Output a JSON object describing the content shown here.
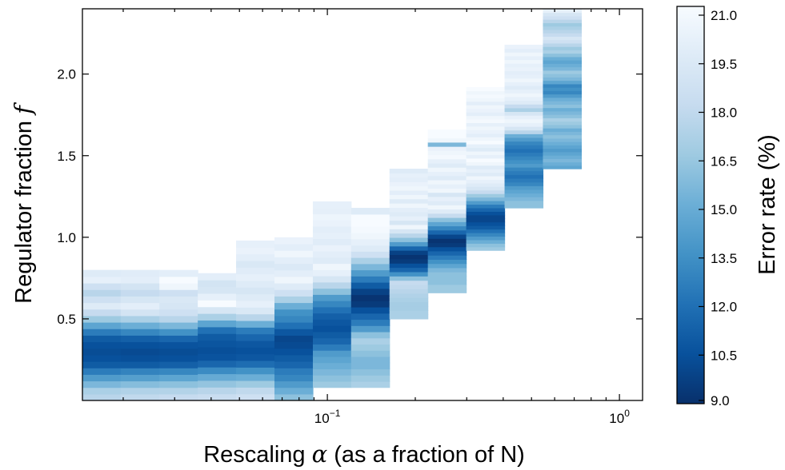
{
  "chart_data": {
    "type": "heatmap",
    "xlabel_main": "Rescaling ",
    "xlabel_symbol": "α",
    "xlabel_rest": " (as a fraction of N)",
    "ylabel_main": "Regulator fraction ",
    "ylabel_symbol": "f",
    "xscale": "log",
    "xlim": [
      0.0145,
      1.2
    ],
    "ylim": [
      0.0,
      2.4
    ],
    "xticks": [
      {
        "value": 0.1,
        "base": "10",
        "exp": "−1"
      },
      {
        "value": 1.0,
        "base": "10",
        "exp": "0"
      }
    ],
    "yticks": [
      {
        "value": 0.5,
        "label": "0.5"
      },
      {
        "value": 1.0,
        "label": "1.0"
      },
      {
        "value": 1.5,
        "label": "1.5"
      },
      {
        "value": 2.0,
        "label": "2.0"
      }
    ],
    "colorbar": {
      "label": "Error rate (%)",
      "range": [
        9.0,
        21.0
      ],
      "ticks": [
        "9.0",
        "10.5",
        "12.0",
        "13.5",
        "15.0",
        "16.5",
        "18.0",
        "19.5",
        "21.0"
      ],
      "colormap": "Blues_r",
      "dark_color": "#08306b",
      "light_color": "#f7fbff"
    },
    "grid": false,
    "x_bin_edges": [
      0.0145,
      0.0196,
      0.0266,
      0.036,
      0.0487,
      0.0659,
      0.0892,
      0.1206,
      0.1632,
      0.2208,
      0.2988,
      0.4043,
      0.547,
      0.7402,
      1.0016
    ],
    "x_bin_edge_last": 1.2,
    "columns": [
      {
        "ymax": 0.8,
        "values": [
          17.5,
          17.0,
          15.5,
          14.0,
          12.5,
          11.0,
          10.5,
          10.3,
          10.5,
          11.0,
          12.5,
          14.5,
          16.5,
          18.0,
          19.5,
          18.5,
          17.5,
          18.5,
          20.0,
          19.5
        ]
      },
      {
        "ymax": 0.8,
        "values": [
          17.8,
          17.2,
          15.8,
          14.2,
          12.8,
          11.0,
          10.4,
          10.2,
          10.5,
          11.2,
          13.0,
          15.0,
          17.0,
          18.8,
          19.8,
          19.0,
          18.0,
          18.8,
          19.8,
          19.6
        ]
      },
      {
        "ymax": 0.8,
        "values": [
          18.0,
          17.3,
          16.0,
          14.5,
          13.0,
          11.2,
          10.5,
          10.3,
          10.6,
          11.5,
          13.5,
          15.5,
          17.5,
          18.5,
          19.0,
          19.2,
          18.5,
          20.5,
          21.0,
          19.8
        ]
      },
      {
        "ymax": 0.78,
        "values": [
          18.2,
          17.5,
          16.2,
          14.8,
          13.2,
          11.5,
          10.6,
          10.4,
          10.7,
          11.0,
          12.0,
          14.5,
          17.0,
          19.0,
          21.0,
          20.0,
          19.0,
          18.8,
          19.8
        ]
      },
      {
        "ymax": 0.98,
        "values": [
          18.5,
          17.8,
          16.5,
          15.0,
          13.5,
          11.8,
          10.8,
          10.5,
          10.8,
          11.5,
          12.5,
          15.0,
          17.5,
          19.2,
          20.0,
          19.5,
          19.0,
          19.5,
          20.0,
          19.6,
          19.2,
          19.8,
          20.2,
          20.0
        ]
      },
      {
        "ymax": 1.0,
        "values": [
          16.0,
          15.0,
          14.0,
          13.0,
          12.5,
          11.5,
          11.0,
          10.5,
          10.2,
          10.0,
          10.8,
          12.0,
          13.0,
          13.5,
          15.0,
          17.0,
          18.5,
          19.5,
          20.5,
          19.8,
          19.3,
          19.8,
          20.5,
          19.8,
          20.2
        ]
      },
      {
        "ymax": 1.22,
        "values": [
          16.5,
          16.0,
          15.5,
          15.0,
          14.5,
          14.0,
          12.5,
          11.5,
          11.0,
          10.5,
          10.8,
          11.2,
          12.0,
          13.0,
          14.0,
          16.0,
          17.5,
          19.0,
          20.0,
          20.5,
          19.5,
          19.8,
          20.2,
          19.6,
          20.0,
          19.8,
          20.2,
          20.4,
          19.9,
          20.0
        ]
      },
      {
        "ymax": 1.18,
        "values": [
          17.0,
          16.5,
          16.0,
          15.5,
          15.5,
          16.0,
          16.5,
          17.0,
          16.0,
          14.0,
          12.5,
          11.5,
          10.5,
          9.5,
          9.2,
          9.8,
          11.0,
          12.5,
          14.0,
          15.5,
          17.0,
          18.5,
          19.5,
          20.0,
          20.5,
          20.8,
          21.0,
          22.0,
          19.5
        ]
      },
      {
        "ymax": 1.42,
        "values": [
          17.0,
          17.0,
          16.8,
          16.8,
          17.0,
          17.2,
          17.5,
          17.8,
          18.0,
          16.0,
          13.5,
          11.5,
          10.5,
          9.5,
          9.2,
          9.8,
          11.5,
          14.0,
          16.0,
          17.5,
          19.0,
          20.5,
          19.0,
          20.0,
          19.5,
          19.8,
          20.5,
          19.5,
          20.5,
          19.8,
          20.5,
          20.2,
          19.8,
          20.0,
          19.5
        ]
      },
      {
        "ymax": 1.66,
        "values": [
          16.5,
          16.5,
          16.0,
          16.0,
          16.0,
          15.5,
          14.5,
          13.5,
          12.5,
          11.5,
          10.5,
          9.5,
          9.2,
          10.0,
          11.5,
          13.0,
          14.5,
          16.0,
          18.0,
          19.5,
          20.5,
          19.5,
          20.0,
          19.0,
          20.5,
          20.0,
          20.5,
          19.5,
          20.0,
          20.5,
          19.5,
          20.0,
          20.8,
          20.5,
          20.2,
          15.5,
          20.5,
          21.0,
          22.0
        ]
      },
      {
        "ymax": 1.92,
        "values": [
          16.5,
          16.0,
          15.0,
          14.0,
          13.0,
          12.0,
          11.0,
          10.5,
          10.0,
          10.0,
          10.5,
          11.5,
          12.5,
          14.0,
          15.5,
          16.5,
          18.0,
          19.0,
          19.5,
          20.0,
          20.5,
          19.5,
          20.0,
          19.5,
          20.5,
          21.0,
          20.0,
          20.5,
          19.5,
          20.0,
          21.0,
          20.5,
          19.8,
          20.2,
          20.5,
          20.0,
          20.8,
          20.5,
          19.8,
          20.2,
          20.5,
          19.8,
          20.5,
          20.8,
          20.5,
          21.0
        ]
      },
      {
        "ymax": 2.18,
        "values": [
          16.0,
          16.0,
          15.5,
          15.0,
          14.5,
          14.0,
          13.0,
          12.5,
          12.0,
          12.5,
          13.0,
          14.0,
          13.5,
          13.0,
          12.5,
          12.0,
          12.5,
          13.0,
          14.0,
          15.0,
          17.5,
          19.0,
          20.0,
          20.5,
          20.0,
          19.0,
          17.0,
          18.0,
          19.5,
          20.0,
          20.5,
          20.0,
          19.5,
          20.0,
          20.5,
          20.0,
          19.8,
          20.2,
          20.0,
          20.5,
          20.0,
          20.5,
          19.8,
          20.2
        ]
      },
      {
        "ymax": 2.44,
        "values": [
          14.5,
          15.0,
          15.5,
          15.0,
          14.5,
          14.0,
          14.5,
          15.0,
          15.5,
          16.0,
          15.5,
          15.0,
          16.0,
          16.5,
          17.0,
          16.0,
          15.5,
          15.0,
          16.0,
          15.5,
          15.0,
          14.0,
          13.0,
          13.5,
          13.0,
          14.5,
          15.5,
          16.0,
          16.5,
          15.5,
          15.0,
          14.5,
          15.0,
          16.0,
          17.0,
          16.5,
          17.5,
          18.5,
          19.0,
          18.0,
          17.5,
          17.0,
          16.5,
          17.5,
          18.5,
          19.0,
          20.0,
          20.5,
          20.0
        ]
      }
    ],
    "column_ymin": [
      0.0,
      0.0,
      0.0,
      0.0,
      0.0,
      0.0,
      0.0,
      0.0,
      0.0,
      0.0,
      0.0,
      0.0,
      0.0,
      0.0,
      0.0,
      0.0,
      0.0,
      0.0,
      0.0,
      0.0,
      0.0,
      0.0,
      0.0,
      0.0,
      0.0,
      0.0,
      0.0,
      0.0,
      0.0,
      0.0,
      0.0,
      0.0,
      0.0,
      0.0,
      0.0,
      0.0,
      0.0,
      0.0,
      0.0,
      0.0,
      0.0,
      0.0,
      0.0,
      0.0,
      0.0,
      0.0,
      0.0,
      0.0,
      0.0
    ],
    "column_ymin_by_col": [
      0.0,
      0.0,
      0.0,
      0.0,
      0.0,
      0.0,
      0.08,
      0.08,
      0.5,
      0.66,
      0.92,
      1.18,
      1.42
    ],
    "bin_height": 0.04
  }
}
